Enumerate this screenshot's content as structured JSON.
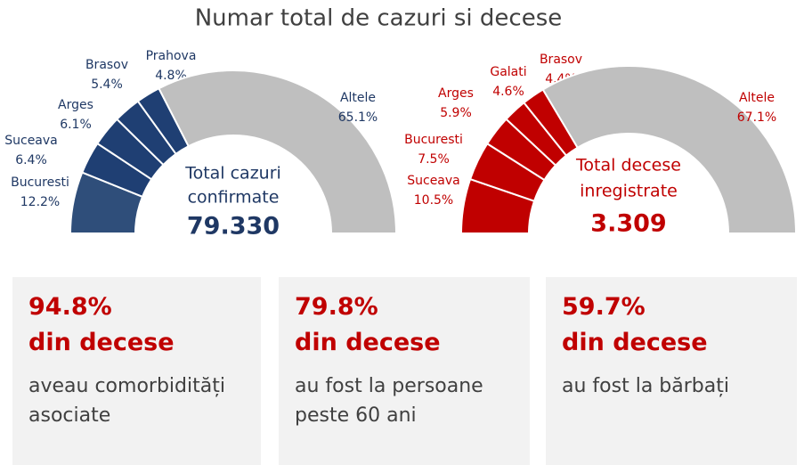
{
  "title": "Numar total de cazuri si decese",
  "chart_data": [
    {
      "type": "pie",
      "shape": "half-donut",
      "center_label": [
        "Total cazuri",
        "confirmate"
      ],
      "center_value": "79.330",
      "label_color": "#1f3864",
      "center_value_color": "#1f3864",
      "categories": [
        "Bucuresti",
        "Suceava",
        "Arges",
        "Brasov",
        "Prahova",
        "Altele"
      ],
      "values": [
        12.2,
        6.4,
        6.1,
        5.4,
        4.8,
        65.1
      ],
      "value_labels": [
        "12.2%",
        "6.4%",
        "6.1%",
        "5.4%",
        "4.8%",
        "65.1%"
      ],
      "colors": [
        "#2f4e7a",
        "#1f3f73",
        "#1f3f73",
        "#1f3f73",
        "#1f3f73",
        "#bfbfbf"
      ]
    },
    {
      "type": "pie",
      "shape": "half-donut",
      "center_label": [
        "Total decese",
        "inregistrate"
      ],
      "center_value": "3.309",
      "label_color": "#c00000",
      "center_value_color": "#c00000",
      "categories": [
        "Suceava",
        "Bucuresti",
        "Arges",
        "Galati",
        "Brasov",
        "Altele"
      ],
      "values": [
        10.5,
        7.5,
        5.9,
        4.6,
        4.4,
        67.1
      ],
      "value_labels": [
        "10.5%",
        "7.5%",
        "5.9%",
        "4.6%",
        "4.4%",
        "67.1%"
      ],
      "colors": [
        "#c00000",
        "#c00000",
        "#c00000",
        "#c00000",
        "#c00000",
        "#bfbfbf"
      ]
    }
  ],
  "stats": [
    {
      "value": "94.8%",
      "heading": "din decese",
      "text": "aveau comorbidități asociate"
    },
    {
      "value": "79.8%",
      "heading": "din decese",
      "text": "au fost la persoane peste 60 ani"
    },
    {
      "value": "59.7%",
      "heading": "din decese",
      "text": "au fost la bărbați"
    }
  ]
}
